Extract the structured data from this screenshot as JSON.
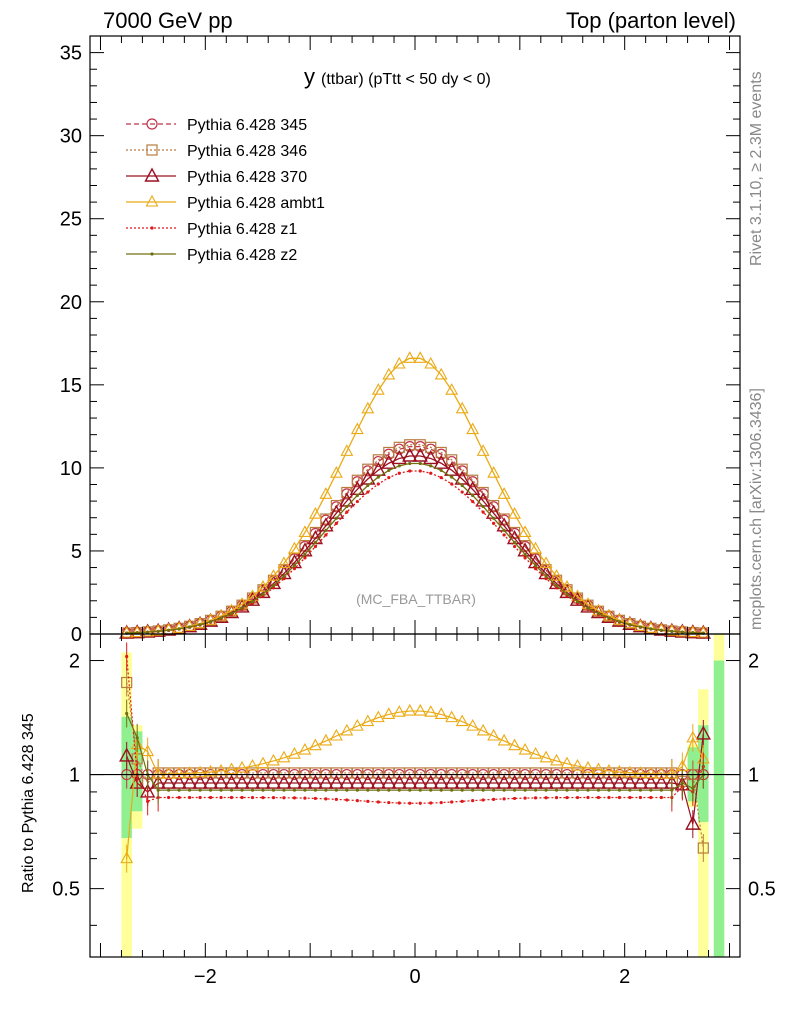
{
  "header": {
    "left": "7000 GeV pp",
    "right": "Top (parton level)",
    "side_top": "Rivet 3.1.10, ≥ 2.3M events",
    "side_bottom": "mcplots.cern.ch [arXiv:1306.3436]"
  },
  "colors": {
    "p345": "#c0344a",
    "p346": "#b87c40",
    "p370": "#9a1020",
    "ambt1": "#ebaa14",
    "z1": "#e01818",
    "z2": "#707010",
    "band_inner": "#90f090",
    "band_outer": "#ffff99"
  },
  "chart_data": {
    "type": "line",
    "title_main": "y",
    "title_rest": "(ttbar) (pTtt < 50 dy < 0)",
    "watermark": "(MC_FBA_TTBAR)",
    "xlim": [
      -3.1,
      3.1
    ],
    "ylim": [
      0,
      36
    ],
    "ratio_ylim": [
      0.33,
      2.35
    ],
    "ratio_ylabel": "Ratio to Pythia 6.428 345",
    "x_ticks": [
      "−2",
      "0",
      "2"
    ],
    "y_ticks": [
      "0",
      "5",
      "10",
      "15",
      "20",
      "25",
      "30",
      "35"
    ],
    "ratio_ticks": [
      "0.5",
      "1",
      "2"
    ],
    "bin_width": 0.1,
    "x_first": -2.75,
    "x_last": 2.75,
    "peak_345": 11.3,
    "gaussian_sigma": 0.85,
    "series": [
      {
        "name": "Pythia 6.428 345",
        "key": "p345",
        "marker": "circle",
        "dash": "5,3",
        "scale": 1.0
      },
      {
        "name": "Pythia 6.428 346",
        "key": "p346",
        "marker": "square",
        "dash": "2,2",
        "scale": 1.01
      },
      {
        "name": "Pythia 6.428 370",
        "key": "p370",
        "marker": "triangle",
        "dash": "",
        "scale": 0.95
      },
      {
        "name": "Pythia 6.428 ambt1",
        "key": "ambt1",
        "marker": "triangle-small",
        "dash": "",
        "scale": "ambt1"
      },
      {
        "name": "Pythia 6.428 z1",
        "key": "z1",
        "marker": "dot",
        "dash": "2,2",
        "scale": 0.87
      },
      {
        "name": "Pythia 6.428 z2",
        "key": "z2",
        "marker": "dot",
        "dash": "",
        "scale": 0.91
      }
    ],
    "ambt1_ratio": {
      "peak": 1.47,
      "sigma": 0.75,
      "plateau": 0.45
    },
    "edge_ratios": {
      "x": [
        -2.75,
        -2.65,
        -2.55,
        2.55,
        2.65,
        2.75
      ],
      "p346": [
        1.75,
        1.1,
        0.95,
        0.96,
        1.0,
        0.64
      ],
      "p370": [
        1.12,
        0.95,
        0.9,
        0.94,
        0.74,
        1.28
      ],
      "ambt1": [
        0.6,
        1.2,
        1.15,
        1.05,
        1.25,
        1.1
      ],
      "z1": [
        2.05,
        1.0,
        0.85,
        0.93,
        0.9,
        1.05
      ],
      "z2": [
        1.45,
        1.25,
        1.0,
        0.95,
        0.92,
        1.0
      ]
    },
    "bands": [
      {
        "x0": -2.8,
        "x1": -2.7,
        "inner": [
          0.68,
          1.42
        ],
        "outer": [
          0.33,
          2.1
        ]
      },
      {
        "x0": -2.7,
        "x1": -2.6,
        "inner": [
          0.8,
          1.3
        ],
        "outer": [
          0.72,
          1.35
        ]
      },
      {
        "x0": 2.6,
        "x1": 2.7,
        "inner": [
          0.85,
          1.18
        ],
        "outer": [
          0.82,
          1.2
        ]
      },
      {
        "x0": 2.7,
        "x1": 2.8,
        "inner": [
          0.75,
          1.35
        ],
        "outer": [
          0.33,
          1.68
        ]
      },
      {
        "x0": 2.85,
        "x1": 2.95,
        "inner": [
          0.33,
          2.0
        ],
        "outer": [
          0.33,
          2.35
        ]
      }
    ]
  }
}
